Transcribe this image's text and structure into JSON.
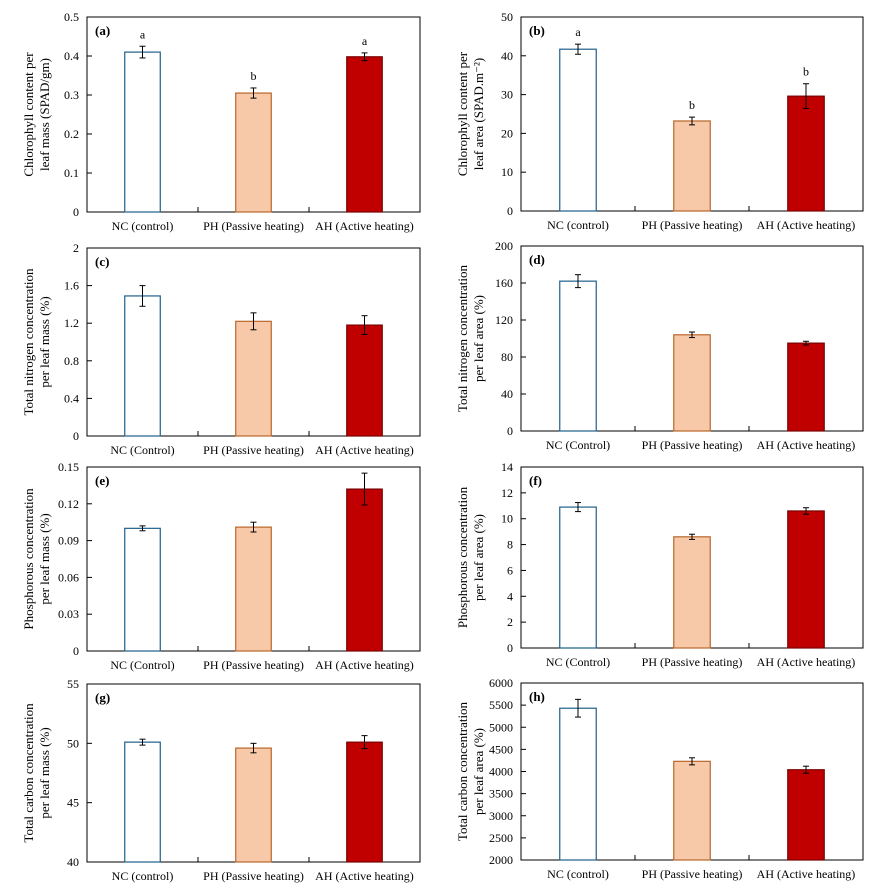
{
  "figure": {
    "colors": {
      "control_edge": "#1f5f8b",
      "control_fill": "#ffffff",
      "passive_fill": "#f8c9a8",
      "passive_edge": "#b8662a",
      "active_fill": "#c00000",
      "active_edge": "#7a0000",
      "axis": "#000000"
    }
  },
  "chart_data": [
    {
      "id": "a",
      "panel_label": "(a)",
      "type": "bar",
      "categories": [
        "NC (control)",
        "PH (Passive heating)",
        "AH (Active heating)"
      ],
      "values": [
        0.41,
        0.305,
        0.398
      ],
      "errors": [
        0.015,
        0.013,
        0.01
      ],
      "significance": [
        "a",
        "b",
        "a"
      ],
      "ylabel": [
        "Chlorophyll content per",
        "leaf mass (SPAD/gm)"
      ],
      "ylim": [
        0,
        0.5
      ],
      "yticks": [
        "0",
        "0.1",
        "0.2",
        "0.3",
        "0.4",
        "0.5"
      ],
      "ytick_values": [
        0,
        0.1,
        0.2,
        0.3,
        0.4,
        0.5
      ]
    },
    {
      "id": "b",
      "panel_label": "(b)",
      "type": "bar",
      "categories": [
        "NC (control)",
        "PH (Passive heating)",
        "AH (Active heating)"
      ],
      "values": [
        41.7,
        23.2,
        29.6
      ],
      "errors": [
        1.3,
        1.0,
        3.2
      ],
      "significance": [
        "a",
        "b",
        "b"
      ],
      "ylabel": [
        "Chlorophyll content  per",
        "leaf area (SPAD.m⁻²)"
      ],
      "ylim": [
        0,
        50
      ],
      "yticks": [
        "0",
        "10",
        "20",
        "30",
        "40",
        "50"
      ],
      "ytick_values": [
        0,
        10,
        20,
        30,
        40,
        50
      ]
    },
    {
      "id": "c",
      "panel_label": "(c)",
      "type": "bar",
      "categories": [
        "NC (Control)",
        "PH (Passive heating)",
        "AH (Active heating)"
      ],
      "values": [
        1.49,
        1.22,
        1.18
      ],
      "errors": [
        0.11,
        0.09,
        0.1
      ],
      "significance": [
        "",
        "",
        ""
      ],
      "ylabel": [
        "Total nitrogen concentration",
        "per leaf mass (%)"
      ],
      "ylim": [
        0,
        2
      ],
      "yticks": [
        "0",
        "0.4",
        "0.8",
        "1.2",
        "1.6",
        "2"
      ],
      "ytick_values": [
        0,
        0.4,
        0.8,
        1.2,
        1.6,
        2
      ]
    },
    {
      "id": "d",
      "panel_label": "(d)",
      "type": "bar",
      "categories": [
        "NC (Control)",
        "PH (Passive heating)",
        "AH (Active heating)"
      ],
      "values": [
        162,
        104,
        95
      ],
      "errors": [
        7,
        3,
        2
      ],
      "significance": [
        "",
        "",
        ""
      ],
      "ylabel": [
        "Total nitrogen concentration",
        "per leaf area (%)"
      ],
      "ylim": [
        0,
        200
      ],
      "yticks": [
        "0",
        "40",
        "80",
        "120",
        "160",
        "200"
      ],
      "ytick_values": [
        0,
        40,
        80,
        120,
        160,
        200
      ]
    },
    {
      "id": "e",
      "panel_label": "(e)",
      "type": "bar",
      "categories": [
        "NC (Control)",
        "PH (Passive heating)",
        "AH (Active heating)"
      ],
      "values": [
        0.1,
        0.101,
        0.132
      ],
      "errors": [
        0.002,
        0.004,
        0.013
      ],
      "significance": [
        "",
        "",
        ""
      ],
      "ylabel": [
        "Phosphorous concentration",
        "per leaf mass (%)"
      ],
      "ylim": [
        0,
        0.15
      ],
      "yticks": [
        "0",
        "0.03",
        "0.06",
        "0.09",
        "0.12",
        "0.15"
      ],
      "ytick_values": [
        0,
        0.03,
        0.06,
        0.09,
        0.12,
        0.15
      ]
    },
    {
      "id": "f",
      "panel_label": "(f)",
      "type": "bar",
      "categories": [
        "NC (Control)",
        "PH (Passive heating)",
        "AH (Active heating)"
      ],
      "values": [
        10.9,
        8.6,
        10.6
      ],
      "errors": [
        0.35,
        0.2,
        0.25
      ],
      "significance": [
        "",
        "",
        ""
      ],
      "ylabel": [
        "Phosphorous concentration",
        "per leaf area (%)"
      ],
      "ylim": [
        0,
        14
      ],
      "yticks": [
        "0",
        "2",
        "4",
        "6",
        "8",
        "10",
        "12",
        "14"
      ],
      "ytick_values": [
        0,
        2,
        4,
        6,
        8,
        10,
        12,
        14
      ]
    },
    {
      "id": "g",
      "panel_label": "(g)",
      "type": "bar",
      "categories": [
        "NC (control)",
        "PH (Passive heating)",
        "AH (Active heating)"
      ],
      "values": [
        50.1,
        49.6,
        50.1
      ],
      "errors": [
        0.25,
        0.4,
        0.55
      ],
      "significance": [
        "",
        "",
        ""
      ],
      "ylabel": [
        "Total carbon concentration",
        "per leaf mass (%)"
      ],
      "ylim": [
        40,
        55
      ],
      "yticks": [
        "40",
        "45",
        "50",
        "55"
      ],
      "ytick_values": [
        40,
        45,
        50,
        55
      ]
    },
    {
      "id": "h",
      "panel_label": "(h)",
      "type": "bar",
      "categories": [
        "NC (control)",
        "PH (Passive heating)",
        "AH (Active heating)"
      ],
      "values": [
        5430,
        4230,
        4040
      ],
      "errors": [
        200,
        80,
        80
      ],
      "significance": [
        "",
        "",
        ""
      ],
      "ylabel": [
        "Total carbon concentration",
        "per leaf area (%)"
      ],
      "ylim": [
        2000,
        6000
      ],
      "yticks": [
        "2000",
        "2500",
        "3000",
        "3500",
        "4000",
        "4500",
        "5000",
        "5500",
        "6000"
      ],
      "ytick_values": [
        2000,
        2500,
        3000,
        3500,
        4000,
        4500,
        5000,
        5500,
        6000
      ]
    }
  ]
}
